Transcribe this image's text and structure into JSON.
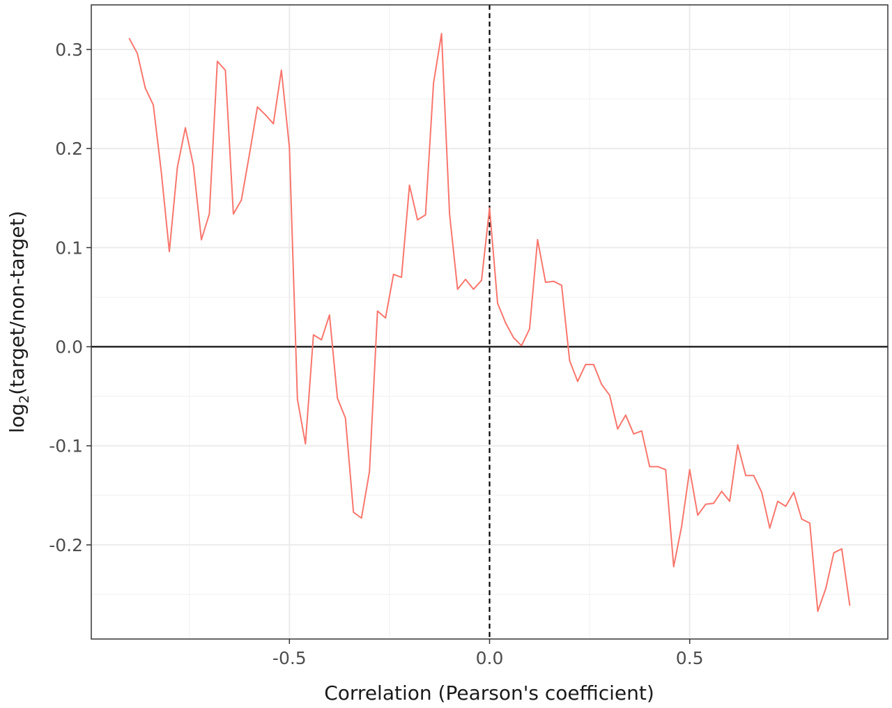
{
  "chart_data": {
    "type": "line",
    "title": "",
    "xlabel": "Correlation (Pearson's coefficient)",
    "ylabel": {
      "base": "log",
      "subscript": "2",
      "rest": "(target/non-target)"
    },
    "xlim": [
      -0.995,
      0.995
    ],
    "ylim": [
      -0.295,
      0.345
    ],
    "x_ticks": [
      -0.5,
      0.0,
      0.5
    ],
    "x_tick_labels": [
      "-0.5",
      "0.0",
      "0.5"
    ],
    "y_ticks": [
      -0.2,
      -0.1,
      0.0,
      0.1,
      0.2,
      0.3
    ],
    "y_tick_labels": [
      "-0.2",
      "-0.1",
      "0.0",
      "0.1",
      "0.2",
      "0.3"
    ],
    "grid": true,
    "legend": "none",
    "reference_lines": [
      {
        "axis": "y",
        "value": 0.0,
        "style": "solid"
      },
      {
        "axis": "x",
        "value": 0.0,
        "style": "dashed"
      }
    ],
    "colors": {
      "line": "#F8766D",
      "grid": "#ebebeb",
      "border": "#333333",
      "reference": "#000000"
    },
    "series": [
      {
        "x": [
          -0.9,
          -0.88,
          -0.86,
          -0.84,
          -0.82,
          -0.8,
          -0.78,
          -0.76,
          -0.74,
          -0.72,
          -0.7,
          -0.68,
          -0.66,
          -0.64,
          -0.62,
          -0.6,
          -0.58,
          -0.56,
          -0.54,
          -0.52,
          -0.5,
          -0.48,
          -0.46,
          -0.44,
          -0.42,
          -0.4,
          -0.38,
          -0.36,
          -0.34,
          -0.32,
          -0.3,
          -0.28,
          -0.26,
          -0.24,
          -0.22,
          -0.2,
          -0.18,
          -0.16,
          -0.14,
          -0.12,
          -0.1,
          -0.08,
          -0.06,
          -0.04,
          -0.02,
          0.0,
          0.02,
          0.04,
          0.06,
          0.08,
          0.1,
          0.12,
          0.14,
          0.16,
          0.18,
          0.2,
          0.22,
          0.24,
          0.26,
          0.28,
          0.3,
          0.32,
          0.34,
          0.36,
          0.38,
          0.4,
          0.42,
          0.44,
          0.46,
          0.48,
          0.5,
          0.52,
          0.54,
          0.56,
          0.58,
          0.6,
          0.62,
          0.64,
          0.66,
          0.68,
          0.7,
          0.72,
          0.74,
          0.76,
          0.78,
          0.8,
          0.82,
          0.84,
          0.86,
          0.88,
          0.9
        ],
        "y": [
          0.311,
          0.296,
          0.261,
          0.244,
          0.176,
          0.096,
          0.181,
          0.221,
          0.183,
          0.108,
          0.134,
          0.288,
          0.279,
          0.134,
          0.148,
          0.194,
          0.242,
          0.234,
          0.225,
          0.279,
          0.201,
          -0.053,
          -0.098,
          0.012,
          0.007,
          0.032,
          -0.052,
          -0.072,
          -0.167,
          -0.173,
          -0.126,
          0.036,
          0.029,
          0.073,
          0.07,
          0.163,
          0.128,
          0.133,
          0.266,
          0.316,
          0.134,
          0.058,
          0.068,
          0.058,
          0.067,
          0.14,
          0.044,
          0.024,
          0.009,
          0.001,
          0.018,
          0.108,
          0.065,
          0.066,
          0.062,
          -0.014,
          -0.035,
          -0.018,
          -0.018,
          -0.038,
          -0.049,
          -0.083,
          -0.069,
          -0.088,
          -0.085,
          -0.121,
          -0.121,
          -0.124,
          -0.222,
          -0.181,
          -0.124,
          -0.17,
          -0.159,
          -0.158,
          -0.146,
          -0.156,
          -0.099,
          -0.13,
          -0.13,
          -0.147,
          -0.183,
          -0.156,
          -0.161,
          -0.147,
          -0.174,
          -0.178,
          -0.267,
          -0.244,
          -0.208,
          -0.204,
          -0.261
        ]
      }
    ]
  }
}
